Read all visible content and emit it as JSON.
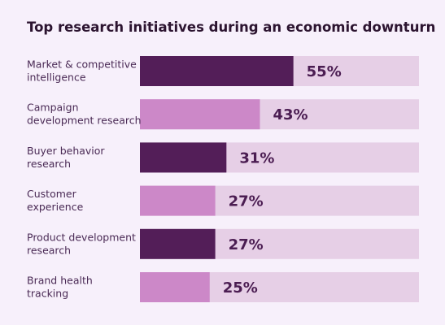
{
  "chart_data": {
    "type": "bar",
    "orientation": "horizontal",
    "title": "Top research initiatives during an economic downturn",
    "categories": [
      [
        "Market & competitive",
        "intelligence"
      ],
      [
        "Campaign",
        "development research"
      ],
      [
        "Buyer behavior",
        "research"
      ],
      [
        "Customer",
        "experience"
      ],
      [
        "Product development",
        "research"
      ],
      [
        "Brand health",
        "tracking"
      ]
    ],
    "values": [
      55,
      43,
      31,
      27,
      27,
      25
    ],
    "value_labels": [
      "55%",
      "43%",
      "31%",
      "27%",
      "27%",
      "25%"
    ],
    "xlim": [
      0,
      100
    ],
    "grid": false,
    "legend": "none",
    "colors": {
      "dark": "#531e58",
      "light": "#cc88c8",
      "track": "#e6cfe6",
      "background": "#f7f0fb",
      "text": "#4a2a55",
      "value_text": "#4b1d52"
    },
    "bar_colors": [
      "dark",
      "light",
      "dark",
      "light",
      "dark",
      "light"
    ]
  }
}
